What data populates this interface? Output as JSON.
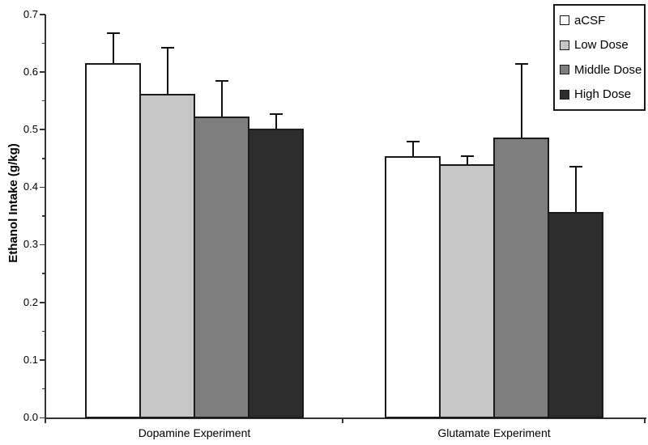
{
  "chart_data": {
    "type": "bar",
    "title": "",
    "ylabel": "Ethanol Intake (g/kg)",
    "xlabel": "",
    "ylim": [
      0,
      0.7
    ],
    "ytick_step": 0.1,
    "minor_tick_step": 0.05,
    "ytick_labels": [
      "0.0",
      "0.1",
      "0.2",
      "0.3",
      "0.4",
      "0.5",
      "0.6",
      "0.7"
    ],
    "grid": false,
    "legend_position": "top-right",
    "error_bars": "upper",
    "categories": [
      "Dopamine Experiment",
      "Glutamate Experiment"
    ],
    "series": [
      {
        "name": "aCSF",
        "color": "#ffffff",
        "values": [
          0.615,
          0.453
        ],
        "errors": [
          0.052,
          0.026
        ]
      },
      {
        "name": "Low Dose",
        "color": "#c6c6c6",
        "values": [
          0.562,
          0.439
        ],
        "errors": [
          0.08,
          0.014
        ]
      },
      {
        "name": "Middle Dose",
        "color": "#7e7e7e",
        "values": [
          0.523,
          0.486
        ],
        "errors": [
          0.061,
          0.128
        ]
      },
      {
        "name": "High Dose",
        "color": "#2d2d2d",
        "values": [
          0.501,
          0.357
        ],
        "errors": [
          0.026,
          0.079
        ]
      }
    ],
    "colors": {
      "axis": "#333333",
      "bar_border": "#1a1a1a",
      "error_bar": "#111111",
      "text": "#000000",
      "background": "#ffffff"
    }
  }
}
